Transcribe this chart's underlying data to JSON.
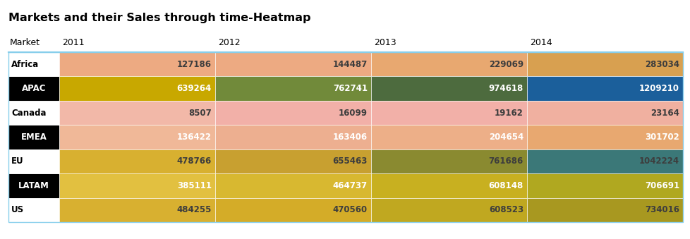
{
  "title": "Markets and their Sales through time-Heatmap",
  "header_labels": [
    "Market",
    "2011",
    "2012",
    "2013",
    "2014"
  ],
  "markets": [
    "Africa",
    "APAC",
    "Canada",
    "EMEA",
    "EU",
    "LATAM",
    "US"
  ],
  "values": [
    [
      127186,
      144487,
      229069,
      283034
    ],
    [
      639264,
      762741,
      974618,
      1209210
    ],
    [
      8507,
      16099,
      19162,
      23164
    ],
    [
      136422,
      163406,
      204654,
      301702
    ],
    [
      478766,
      655463,
      761686,
      1042224
    ],
    [
      385111,
      464737,
      608148,
      706691
    ],
    [
      484255,
      470560,
      608523,
      734016
    ]
  ],
  "cell_colors": [
    [
      "#EDAA82",
      "#EDAA82",
      "#E8A870",
      "#D8A050"
    ],
    [
      "#C8A800",
      "#718A3A",
      "#4D6B3E",
      "#1B5F9B"
    ],
    [
      "#F2B8A8",
      "#F2B0A8",
      "#F2B0A8",
      "#F0B0A0"
    ],
    [
      "#F0B898",
      "#EDAF90",
      "#EDAF88",
      "#E8A870"
    ],
    [
      "#D8B030",
      "#C8A030",
      "#8A8A30",
      "#3B7878"
    ],
    [
      "#E2C040",
      "#D8B830",
      "#C8B020",
      "#B0A820"
    ],
    [
      "#D8B030",
      "#D4AC28",
      "#C0A820",
      "#A89820"
    ]
  ],
  "text_colors": [
    [
      "#3d3d3d",
      "#3d3d3d",
      "#3d3d3d",
      "#3d3d3d"
    ],
    [
      "#ffffff",
      "#ffffff",
      "#ffffff",
      "#ffffff"
    ],
    [
      "#3d3d3d",
      "#3d3d3d",
      "#3d3d3d",
      "#3d3d3d"
    ],
    [
      "#ffffff",
      "#ffffff",
      "#ffffff",
      "#ffffff"
    ],
    [
      "#3d3d3d",
      "#3d3d3d",
      "#3d3d3d",
      "#3d3d3d"
    ],
    [
      "#ffffff",
      "#ffffff",
      "#ffffff",
      "#ffffff"
    ],
    [
      "#3d3d3d",
      "#3d3d3d",
      "#3d3d3d",
      "#3d3d3d"
    ]
  ],
  "label_bg": [
    "none",
    "black",
    "none",
    "black",
    "none",
    "black",
    "none"
  ],
  "label_text_colors": [
    "black",
    "white",
    "black",
    "white",
    "black",
    "white",
    "black"
  ],
  "background_color": "#ffffff",
  "border_color": "#87CEEB",
  "title_fontsize": 11.5,
  "header_fontsize": 9,
  "cell_fontsize": 8.5,
  "label_fontsize": 8.5
}
